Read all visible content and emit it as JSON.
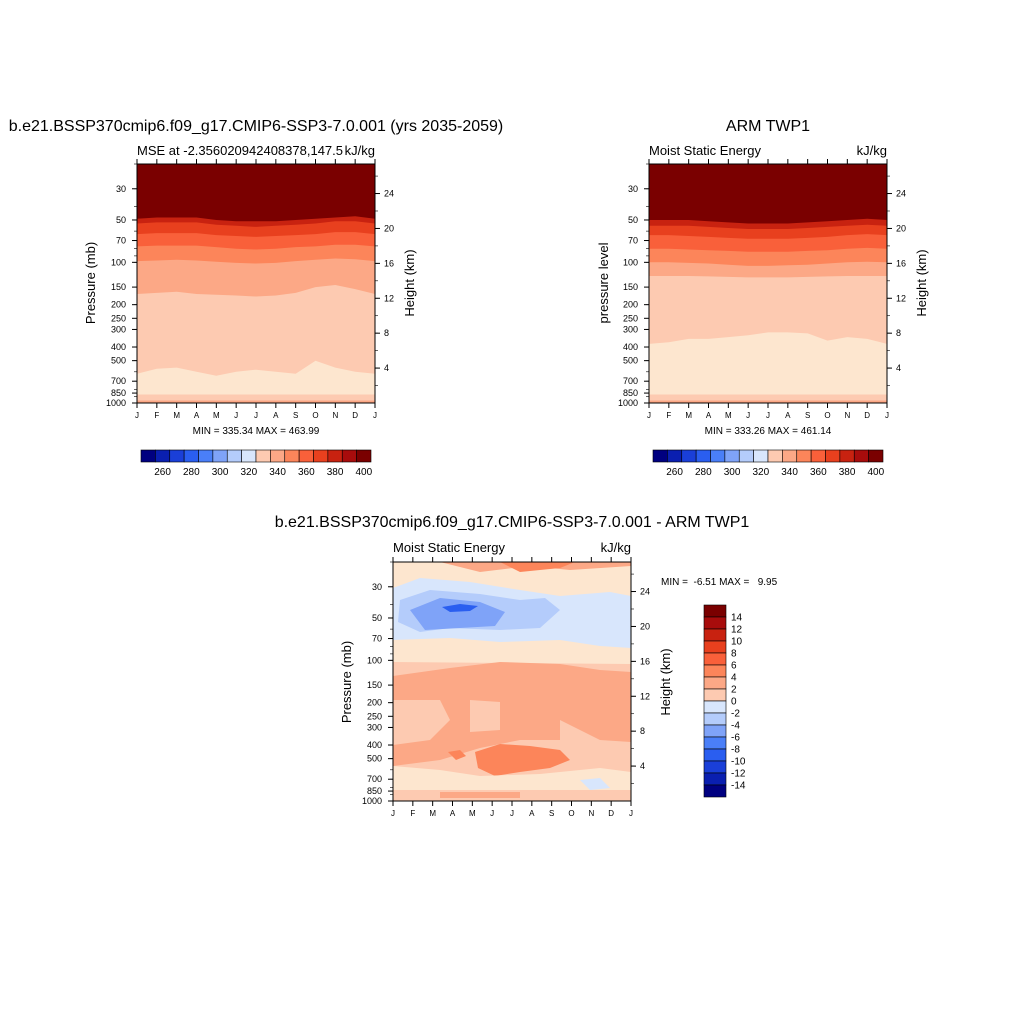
{
  "figure": {
    "colors": {
      "blues": [
        "#000080",
        "#0a1fb0",
        "#1a3fd8",
        "#2a5ef0",
        "#4a7ff8",
        "#7fa3f8",
        "#b4ccfb",
        "#d8e6fc"
      ],
      "reds": [
        "#fde6cf",
        "#fdcab1",
        "#fca886",
        "#fc855a",
        "#f9603a",
        "#e8401e",
        "#c82210",
        "#a80c0c",
        "#7a0000"
      ]
    }
  },
  "chart_data": [
    {
      "id": "model",
      "type": "heatmap",
      "title": "b.e21.BSSP370cmip6.f09_g17.CMIP6-SSP3-7.0.001 (yrs 2035-2059)",
      "subtitle_left": "MSE at -2.356020942408378,147.5",
      "subtitle_right": "kJ/kg",
      "ylabel": "Pressure (mb)",
      "ylabel_right": "Height (km)",
      "xticks": [
        "J",
        "F",
        "M",
        "A",
        "M",
        "J",
        "J",
        "A",
        "S",
        "O",
        "N",
        "D",
        "J"
      ],
      "yticks_pressure": [
        30,
        50,
        70,
        100,
        150,
        200,
        250,
        300,
        400,
        500,
        700,
        850,
        1000
      ],
      "yticks_height": [
        24,
        20,
        16,
        12,
        8,
        4
      ],
      "ylim_pressure": [
        1000,
        20
      ],
      "minmax_text": "MIN = 335.34 MAX = 463.99",
      "colorbar": {
        "orientation": "horizontal",
        "labels": [
          "260",
          "280",
          "300",
          "320",
          "340",
          "360",
          "380",
          "400"
        ],
        "levels": [
          250,
          260,
          270,
          280,
          290,
          300,
          310,
          320,
          330,
          340,
          350,
          360,
          370,
          380,
          390,
          400,
          410
        ]
      },
      "contour_bands": {
        "values": [
          350,
          370,
          380,
          390,
          400,
          410,
          420
        ],
        "pressure_by_month": [
          [
            620,
            168,
            98,
            77,
            63,
            53,
            49
          ],
          [
            570,
            165,
            97,
            76,
            62,
            52,
            48
          ],
          [
            560,
            162,
            96,
            76,
            62,
            52,
            48
          ],
          [
            600,
            168,
            97,
            76,
            62,
            52,
            48
          ],
          [
            640,
            170,
            99,
            78,
            64,
            54,
            50
          ],
          [
            600,
            172,
            101,
            80,
            65,
            55,
            51
          ],
          [
            580,
            175,
            102,
            81,
            66,
            56,
            51
          ],
          [
            600,
            172,
            101,
            80,
            65,
            55,
            51
          ],
          [
            620,
            165,
            98,
            78,
            64,
            54,
            50
          ],
          [
            500,
            150,
            96,
            77,
            63,
            53,
            49
          ],
          [
            560,
            145,
            94,
            75,
            61,
            51,
            48
          ],
          [
            600,
            155,
            95,
            75,
            61,
            51,
            47
          ],
          [
            620,
            168,
            98,
            77,
            63,
            53,
            49
          ]
        ]
      }
    },
    {
      "id": "obs",
      "type": "heatmap",
      "title": "ARM TWP1",
      "subtitle_left": "Moist Static Energy",
      "subtitle_right": "kJ/kg",
      "ylabel": "pressure level",
      "ylabel_right": "Height (km)",
      "xticks": [
        "J",
        "F",
        "M",
        "A",
        "M",
        "J",
        "J",
        "A",
        "S",
        "O",
        "N",
        "D",
        "J"
      ],
      "yticks_pressure": [
        30,
        50,
        70,
        100,
        150,
        200,
        250,
        300,
        400,
        500,
        700,
        850,
        1000
      ],
      "yticks_height": [
        24,
        20,
        16,
        12,
        8,
        4
      ],
      "ylim_pressure": [
        1000,
        20
      ],
      "minmax_text": "MIN = 333.26 MAX = 461.14",
      "colorbar": {
        "orientation": "horizontal",
        "labels": [
          "260",
          "280",
          "300",
          "320",
          "340",
          "360",
          "380",
          "400"
        ],
        "levels": [
          250,
          260,
          270,
          280,
          290,
          300,
          310,
          320,
          330,
          340,
          350,
          360,
          370,
          380,
          390,
          400,
          410
        ]
      },
      "contour_bands": {
        "values": [
          350,
          370,
          380,
          390,
          400,
          410,
          420
        ],
        "pressure_by_month": [
          [
            380,
            125,
            100,
            80,
            64,
            55,
            50
          ],
          [
            370,
            125,
            100,
            80,
            64,
            55,
            50
          ],
          [
            350,
            125,
            101,
            81,
            65,
            55,
            50
          ],
          [
            350,
            126,
            102,
            82,
            66,
            56,
            51
          ],
          [
            340,
            127,
            104,
            83,
            67,
            57,
            52
          ],
          [
            330,
            128,
            106,
            84,
            68,
            58,
            53
          ],
          [
            315,
            128,
            106,
            84,
            68,
            58,
            53
          ],
          [
            315,
            128,
            105,
            84,
            68,
            58,
            53
          ],
          [
            320,
            127,
            104,
            83,
            67,
            57,
            52
          ],
          [
            360,
            126,
            102,
            82,
            66,
            56,
            51
          ],
          [
            340,
            125,
            100,
            80,
            64,
            55,
            50
          ],
          [
            350,
            125,
            99,
            79,
            63,
            54,
            49
          ],
          [
            380,
            125,
            100,
            80,
            64,
            55,
            50
          ]
        ]
      }
    },
    {
      "id": "diff",
      "type": "heatmap",
      "title": "b.e21.BSSP370cmip6.f09_g17.CMIP6-SSP3-7.0.001 - ARM TWP1",
      "subtitle_left": "Moist Static Energy",
      "subtitle_right": "kJ/kg",
      "ylabel": "Pressure (mb)",
      "ylabel_right": "Height (km)",
      "xticks": [
        "J",
        "F",
        "M",
        "A",
        "M",
        "J",
        "J",
        "A",
        "S",
        "O",
        "N",
        "D",
        "J"
      ],
      "yticks_pressure": [
        30,
        50,
        70,
        100,
        150,
        200,
        250,
        300,
        400,
        500,
        700,
        850,
        1000
      ],
      "yticks_height": [
        24,
        20,
        16,
        12,
        8,
        4
      ],
      "ylim_pressure": [
        1000,
        20
      ],
      "minmax_text": "MIN =  -6.51 MAX =   9.95",
      "colorbar": {
        "orientation": "vertical",
        "labels": [
          "14",
          "12",
          "10",
          "8",
          "6",
          "4",
          "2",
          "0",
          "-2",
          "-4",
          "-6",
          "-8",
          "-10",
          "-12",
          "-14"
        ],
        "levels": [
          -16,
          -14,
          -12,
          -10,
          -8,
          -6,
          -4,
          -2,
          0,
          2,
          4,
          6,
          8,
          10,
          12,
          14,
          16
        ]
      }
    }
  ]
}
